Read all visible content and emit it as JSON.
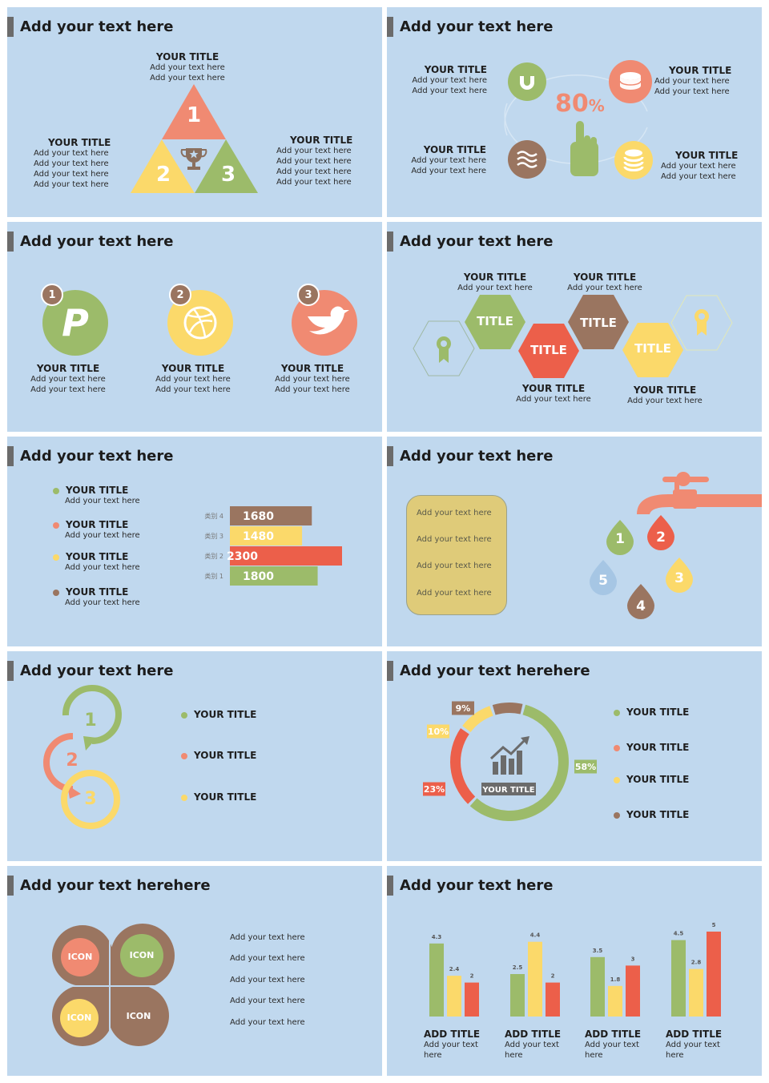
{
  "colors": {
    "bg": "#c0d8ee",
    "salmon": "#f08a72",
    "yellow": "#fbd96a",
    "green": "#9cbb6a",
    "brown": "#9a7560",
    "red": "#ec5f4a",
    "title_bar": "#6b6b6b"
  },
  "s1": {
    "title": "Add your text here",
    "top": {
      "title": "YOUR TITLE",
      "lines": [
        "Add your text here",
        "Add your text here"
      ]
    },
    "left": {
      "title": "YOUR TITLE",
      "lines": [
        "Add your text here",
        "Add your text here",
        "Add your text here",
        "Add your text here"
      ]
    },
    "right": {
      "title": "YOUR TITLE",
      "lines": [
        "Add your text here",
        "Add your text here",
        "Add your text here",
        "Add your text here"
      ]
    },
    "nums": [
      "1",
      "2",
      "3"
    ],
    "icon": "trophy-icon"
  },
  "s2": {
    "title": "Add your text here",
    "percent": "80",
    "pct_sign": "%",
    "blocks": [
      {
        "title": "YOUR TITLE",
        "lines": [
          "Add your text here",
          "Add your text here"
        ],
        "icon": "magnet-icon"
      },
      {
        "title": "YOUR TITLE",
        "lines": [
          "Add your text here",
          "Add your text here"
        ],
        "icon": "coin-icon"
      },
      {
        "title": "YOUR TITLE",
        "lines": [
          "Add your text here",
          "Add your text here"
        ],
        "icon": "waves-icon"
      },
      {
        "title": "YOUR TITLE",
        "lines": [
          "Add your text here",
          "Add your text here"
        ],
        "icon": "database-icon"
      }
    ]
  },
  "s3": {
    "title": "Add your text here",
    "items": [
      {
        "num": "1",
        "title": "YOUR TITLE",
        "lines": [
          "Add your text here",
          "Add your text here"
        ],
        "icon": "paypal-icon"
      },
      {
        "num": "2",
        "title": "YOUR TITLE",
        "lines": [
          "Add your text here",
          "Add your text here"
        ],
        "icon": "dribbble-icon"
      },
      {
        "num": "3",
        "title": "YOUR TITLE",
        "lines": [
          "Add your text here",
          "Add your text here"
        ],
        "icon": "bird-icon"
      }
    ]
  },
  "s4": {
    "title": "Add your text here",
    "hex": [
      "TITLE",
      "TITLE",
      "TITLE",
      "TITLE"
    ],
    "captions": [
      {
        "title": "YOUR TITLE",
        "text": "Add your text here"
      },
      {
        "title": "YOUR TITLE",
        "text": "Add your text here"
      },
      {
        "title": "YOUR TITLE",
        "text": "Add your text here"
      },
      {
        "title": "YOUR TITLE",
        "text": "Add your text here"
      }
    ],
    "icon": "award-icon"
  },
  "s5": {
    "title": "Add your text here",
    "legend": [
      {
        "title": "YOUR TITLE",
        "text": "Add your text here"
      },
      {
        "title": "YOUR TITLE",
        "text": "Add your text here"
      },
      {
        "title": "YOUR TITLE",
        "text": "Add your text here"
      },
      {
        "title": "YOUR TITLE",
        "text": "Add your text here"
      }
    ]
  },
  "chart_data": [
    {
      "type": "bar",
      "orientation": "horizontal",
      "categories": [
        "类别 4",
        "类别 3",
        "类别 2",
        "类别 1"
      ],
      "values": [
        1680,
        1480,
        2300,
        1800
      ],
      "colors": [
        "#9a7560",
        "#fbd96a",
        "#ec5f4a",
        "#9cbb6a"
      ]
    },
    {
      "type": "pie",
      "style": "donut",
      "center_label": "YOUR TITLE",
      "values": [
        58,
        23,
        10,
        9
      ],
      "labels": [
        "58%",
        "23%",
        "10%",
        "9%"
      ],
      "colors": [
        "#9cbb6a",
        "#ec5f4a",
        "#fbd96a",
        "#9a7560"
      ],
      "legend": [
        "YOUR TITLE",
        "YOUR TITLE",
        "YOUR TITLE",
        "YOUR TITLE"
      ]
    },
    {
      "type": "bar",
      "groups": [
        "ADD TITLE",
        "ADD TITLE",
        "ADD TITLE",
        "ADD TITLE"
      ],
      "series": [
        {
          "values": [
            4.3,
            2.5,
            3.5,
            4.5
          ],
          "color": "#9cbb6a"
        },
        {
          "values": [
            2.4,
            4.4,
            1.8,
            2.8
          ],
          "color": "#fbd96a"
        },
        {
          "values": [
            2,
            2,
            3,
            5
          ],
          "color": "#ec5f4a"
        }
      ],
      "ylim": [
        0,
        5
      ]
    }
  ],
  "s6": {
    "title": "Add your text here",
    "box_lines": [
      "Add your text here",
      "Add your text here",
      "Add your text here",
      "Add your text here"
    ],
    "drops": [
      "1",
      "2",
      "3",
      "4",
      "5"
    ]
  },
  "s7": {
    "title": "Add your text here",
    "nums": [
      "1",
      "2",
      "3"
    ],
    "items": [
      "YOUR TITLE",
      "YOUR TITLE",
      "YOUR TITLE"
    ]
  },
  "s8": {
    "title": "Add your text herehere"
  },
  "s9": {
    "title": "Add your text herehere",
    "icons": [
      "ICON",
      "ICON",
      "ICON",
      "ICON"
    ],
    "lines": [
      "Add your text here",
      "Add your text here",
      "Add your text here",
      "Add your text here",
      "Add your text here"
    ]
  },
  "s10": {
    "title": "Add your text here",
    "group_text": [
      "Add your text",
      "here"
    ]
  }
}
